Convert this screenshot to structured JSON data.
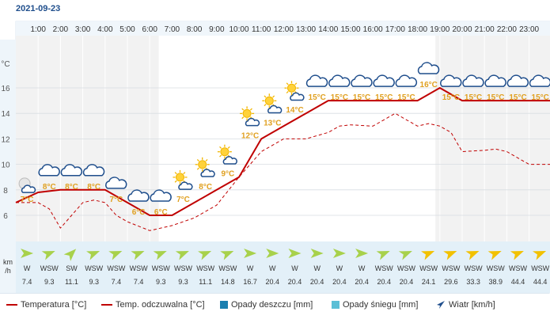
{
  "date": "2021-09-23",
  "colors": {
    "temp": "#c00000",
    "feels": "#c00000",
    "rain": "#1a7fb0",
    "snow": "#5bbfd6",
    "wind_normal": "#a8d14b",
    "wind_strong": "#f2c100",
    "icon_text": "#e0a020"
  },
  "chart_data": {
    "type": "line",
    "hours": [
      "1:00",
      "2:00",
      "3:00",
      "4:00",
      "5:00",
      "6:00",
      "7:00",
      "8:00",
      "9:00",
      "10:00",
      "11:00",
      "12:00",
      "13:00",
      "14:00",
      "15:00",
      "16:00",
      "17:00",
      "18:00",
      "19:00",
      "20:00",
      "21:00",
      "22:00",
      "23:00"
    ],
    "y_unit": "°C",
    "yticks": [
      6,
      8,
      10,
      12,
      14,
      16
    ],
    "ylim": [
      4.5,
      17.5
    ],
    "series": [
      {
        "name": "Temperatura [°C]",
        "x": [
          0,
          1,
          2,
          3,
          4,
          5,
          6,
          7,
          8,
          9,
          10,
          11,
          12,
          13,
          14,
          15,
          16,
          17,
          18,
          19,
          20,
          21,
          22,
          23,
          24
        ],
        "values": [
          7,
          7.8,
          8,
          8,
          8,
          7,
          6,
          6,
          7,
          8,
          9,
          12,
          13,
          14,
          15,
          15,
          15,
          15,
          15,
          16,
          15,
          15,
          15,
          15,
          15
        ]
      },
      {
        "name": "Temp. odczuwalna [°C]",
        "x": [
          0,
          1,
          1.5,
          2,
          2.5,
          3,
          3.5,
          4,
          4.5,
          5,
          6,
          7,
          8,
          9,
          10,
          10.5,
          11,
          12,
          13,
          14,
          14.5,
          15,
          16,
          16.5,
          17,
          17.5,
          18,
          18.5,
          19,
          19.5,
          20,
          21,
          21.5,
          22,
          22.5,
          23,
          24
        ],
        "values": [
          7,
          7,
          6.5,
          5,
          6,
          7,
          7.2,
          7,
          6,
          5.5,
          4.8,
          5.2,
          5.8,
          6.8,
          9,
          10,
          11,
          12,
          12,
          12.5,
          13,
          13.1,
          13,
          13.5,
          14,
          13.5,
          13,
          13.2,
          13,
          12.5,
          11,
          11.1,
          11.2,
          11,
          10.5,
          10,
          10
        ]
      }
    ],
    "icon_labels": [
      "7°C",
      "8°C",
      "8°C",
      "8°C",
      "7°C",
      "6°C",
      "6°C",
      "7°C",
      "8°C",
      "9°C",
      "12°C",
      "13°C",
      "14°C",
      "15°C",
      "15°C",
      "15°C",
      "15°C",
      "15°C",
      "16°C",
      "15°C",
      "15°C",
      "15°C",
      "15°C",
      "15°C"
    ],
    "icon_label_values": [
      7,
      8,
      8,
      8,
      7,
      6,
      6,
      7,
      8,
      9,
      12,
      13,
      14,
      15,
      15,
      15,
      15,
      15,
      16,
      15,
      15,
      15,
      15,
      15
    ],
    "icon_types": [
      "moon-cloud-icon",
      "cloud-icon",
      "cloud-icon",
      "cloud-icon",
      "cloud-icon",
      "cloud-icon",
      "cloud-icon",
      "sun-cloud-icon",
      "sun-cloud-icon",
      "sun-cloud-icon",
      "sun-cloud-icon",
      "sun-cloud-icon",
      "sun-cloud-icon",
      "cloud-icon",
      "cloud-icon",
      "cloud-icon",
      "cloud-icon",
      "cloud-icon",
      "cloud-icon",
      "cloud-icon",
      "cloud-icon",
      "cloud-icon",
      "cloud-icon",
      "cloud-icon"
    ],
    "wind": {
      "unit_line1": "km",
      "unit_line2": "/h",
      "directions": [
        "W",
        "WSW",
        "SW",
        "WSW",
        "WSW",
        "WSW",
        "WSW",
        "WSW",
        "WSW",
        "WSW",
        "W",
        "W",
        "W",
        "W",
        "W",
        "W",
        "WSW",
        "WSW",
        "WSW",
        "WSW",
        "WSW",
        "WSW",
        "WSW",
        "WSW"
      ],
      "speeds": [
        "7.4",
        "9.3",
        "11.1",
        "9.3",
        "7.4",
        "7.4",
        "9.3",
        "9.3",
        "11.1",
        "14.8",
        "16.7",
        "20.4",
        "20.4",
        "20.4",
        "20.4",
        "20.4",
        "20.4",
        "20.4",
        "24.1",
        "29.6",
        "33.3",
        "38.9",
        "44.4",
        "44.4"
      ]
    }
  },
  "legend": {
    "temp": "Temperatura [°C]",
    "feels": "Temp. odczuwalna [°C]",
    "rain": "Opady deszczu [mm]",
    "snow": "Opady śniegu [mm]",
    "wind": "Wiatr [km/h]"
  }
}
